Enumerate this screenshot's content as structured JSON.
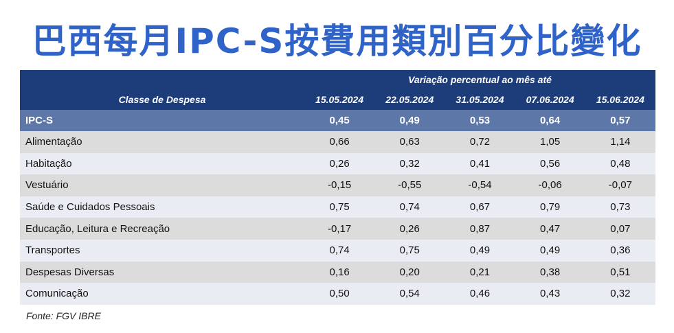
{
  "title": "巴西每月IPC-S按費用類別百分比變化",
  "source": "Fonte: FGV IBRE",
  "chart_data": {
    "type": "table",
    "title": "巴西每月IPC-S按費用類別百分比變化",
    "super_header": "Variação percentual ao mês até",
    "row_header": "Classe de Despesa",
    "columns": [
      "15.05.2024",
      "22.05.2024",
      "31.05.2024",
      "07.06.2024",
      "15.06.2024"
    ],
    "total": {
      "label": "IPC-S",
      "values": [
        "0,45",
        "0,49",
        "0,53",
        "0,64",
        "0,57"
      ]
    },
    "rows": [
      {
        "label": "Alimentação",
        "values": [
          "0,66",
          "0,63",
          "0,72",
          "1,05",
          "1,14"
        ]
      },
      {
        "label": "Habitação",
        "values": [
          "0,26",
          "0,32",
          "0,41",
          "0,56",
          "0,48"
        ]
      },
      {
        "label": "Vestuário",
        "values": [
          "-0,15",
          "-0,55",
          "-0,54",
          "-0,06",
          "-0,07"
        ]
      },
      {
        "label": "Saúde e Cuidados Pessoais",
        "values": [
          "0,75",
          "0,74",
          "0,67",
          "0,79",
          "0,73"
        ]
      },
      {
        "label": "Educação, Leitura e Recreação",
        "values": [
          "-0,17",
          "0,26",
          "0,87",
          "0,47",
          "0,07"
        ]
      },
      {
        "label": "Transportes",
        "values": [
          "0,74",
          "0,75",
          "0,49",
          "0,49",
          "0,36"
        ]
      },
      {
        "label": "Despesas Diversas",
        "values": [
          "0,16",
          "0,20",
          "0,21",
          "0,38",
          "0,51"
        ]
      },
      {
        "label": "Comunicação",
        "values": [
          "0,50",
          "0,54",
          "0,46",
          "0,43",
          "0,32"
        ]
      }
    ],
    "colors": {
      "title": "#2f63c8",
      "header_bg": "#1d3c7a",
      "total_bg": "#5c77a8",
      "row_odd_bg": "#dcdcdc",
      "row_even_bg": "#e9edf3"
    }
  }
}
